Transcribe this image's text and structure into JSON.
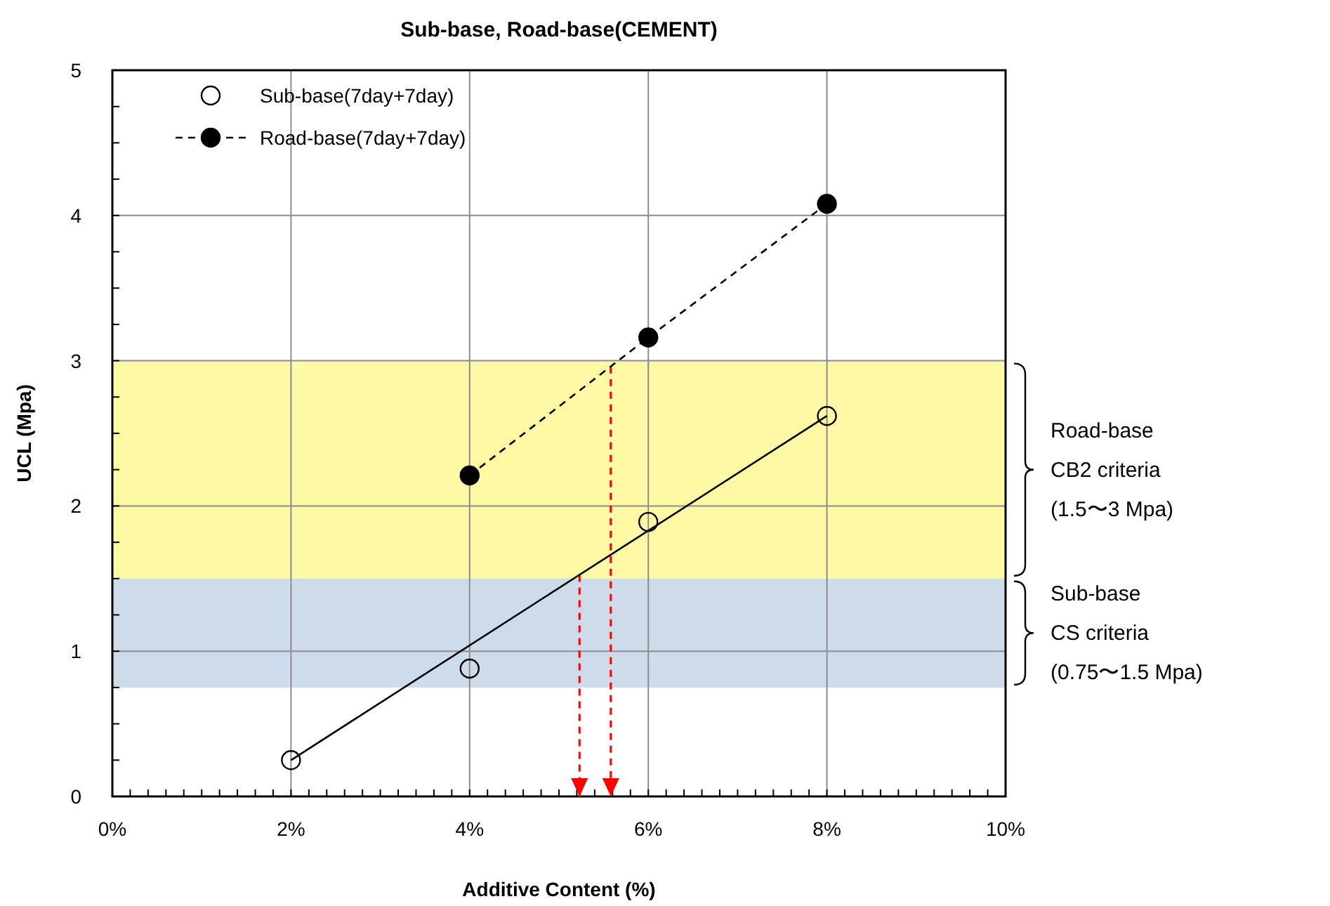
{
  "chart_data": {
    "type": "scatter",
    "title": "Sub-base, Road-base(CEMENT)",
    "xlabel": "Additive Content (%)",
    "ylabel": "UCL (Mpa)",
    "xlim": [
      0,
      0.1
    ],
    "xticks": [
      {
        "value": 0,
        "label": "0%"
      },
      {
        "value": 0.002,
        "label": null
      },
      {
        "value": 0.004,
        "label": null
      },
      {
        "value": 0.006,
        "label": null
      },
      {
        "value": 0.008,
        "label": null
      },
      {
        "value": 0.01,
        "label": null
      },
      {
        "value": 0.012,
        "label": null
      },
      {
        "value": 0.014,
        "label": null
      },
      {
        "value": 0.016,
        "label": null
      },
      {
        "value": 0.018,
        "label": null
      },
      {
        "value": 0.02,
        "label": "2%"
      },
      {
        "value": 0.022,
        "label": null
      },
      {
        "value": 0.024,
        "label": null
      },
      {
        "value": 0.026,
        "label": null
      },
      {
        "value": 0.028,
        "label": null
      },
      {
        "value": 0.03,
        "label": null
      },
      {
        "value": 0.032,
        "label": null
      },
      {
        "value": 0.034,
        "label": null
      },
      {
        "value": 0.036,
        "label": null
      },
      {
        "value": 0.038,
        "label": null
      },
      {
        "value": 0.04,
        "label": "4%"
      },
      {
        "value": 0.042,
        "label": null
      },
      {
        "value": 0.044,
        "label": null
      },
      {
        "value": 0.046,
        "label": null
      },
      {
        "value": 0.048,
        "label": null
      },
      {
        "value": 0.05,
        "label": null
      },
      {
        "value": 0.052,
        "label": null
      },
      {
        "value": 0.054,
        "label": null
      },
      {
        "value": 0.056,
        "label": null
      },
      {
        "value": 0.058,
        "label": null
      },
      {
        "value": 0.06,
        "label": "6%"
      },
      {
        "value": 0.062,
        "label": null
      },
      {
        "value": 0.064,
        "label": null
      },
      {
        "value": 0.066,
        "label": null
      },
      {
        "value": 0.068,
        "label": null
      },
      {
        "value": 0.07,
        "label": null
      },
      {
        "value": 0.072,
        "label": null
      },
      {
        "value": 0.074,
        "label": null
      },
      {
        "value": 0.076,
        "label": null
      },
      {
        "value": 0.078,
        "label": null
      },
      {
        "value": 0.08,
        "label": "8%"
      },
      {
        "value": 0.082,
        "label": null
      },
      {
        "value": 0.084,
        "label": null
      },
      {
        "value": 0.086,
        "label": null
      },
      {
        "value": 0.088,
        "label": null
      },
      {
        "value": 0.09,
        "label": null
      },
      {
        "value": 0.092,
        "label": null
      },
      {
        "value": 0.094,
        "label": null
      },
      {
        "value": 0.096,
        "label": null
      },
      {
        "value": 0.098,
        "label": null
      },
      {
        "value": 0.1,
        "label": "10%"
      }
    ],
    "ylim": [
      0,
      5
    ],
    "yticks": [
      0,
      {
        "value": 0.25,
        "label": null
      },
      {
        "value": 0.5,
        "label": null
      },
      {
        "value": 0.75,
        "label": null
      },
      1,
      {
        "value": 1.25,
        "label": null
      },
      {
        "value": 1.5,
        "label": null
      },
      {
        "value": 1.75,
        "label": null
      },
      2,
      {
        "value": 2.25,
        "label": null
      },
      {
        "value": 2.5,
        "label": null
      },
      {
        "value": 2.75,
        "label": null
      },
      3,
      {
        "value": 3.25,
        "label": null
      },
      {
        "value": 3.5,
        "label": null
      },
      {
        "value": 3.75,
        "label": null
      },
      4,
      {
        "value": 4.25,
        "label": null
      },
      {
        "value": 4.5,
        "label": null
      },
      {
        "value": 4.75,
        "label": null
      },
      5
    ],
    "grid": true,
    "legend": "top left",
    "series": [
      {
        "name": "Sub-base(7day+7day)",
        "color": "#000000",
        "marker": "circle",
        "x": [
          0.02,
          0.04,
          0.06,
          0.08
        ],
        "values": [
          0.25,
          0.88,
          1.89,
          2.62
        ]
      },
      {
        "type": "line",
        "color": "#000000",
        "marker": "none",
        "line_style": "solid",
        "x": [
          0.02,
          0.08
        ],
        "values": [
          0.25,
          2.62
        ]
      },
      {
        "name": "Road-base(7day+7day)",
        "type": "line",
        "color": "#000000",
        "marker": "circle",
        "line_style": "dashed",
        "x": [
          0.04,
          0.06,
          0.08
        ],
        "values": [
          2.21,
          3.16,
          4.08
        ]
      }
    ],
    "bands": [
      {
        "axis": "y",
        "from": 1.5,
        "to": 3,
        "color": "#fdf9a5",
        "label": "Road-base\nCB2 criteria\n(1.5〜3 Mpa)"
      },
      {
        "axis": "y",
        "from": 0.75,
        "to": 1.5,
        "color": "#cddbea",
        "label": "Sub-base\nCS criteria\n(0.75〜1.5 Mpa)"
      }
    ],
    "ref_lines": [
      {
        "axis": "x",
        "value": 0.0523,
        "color": "#ff0000",
        "line_style": "dashed"
      },
      {
        "axis": "x",
        "value": 0.0558,
        "color": "#ff0000",
        "line_style": "dashed"
      }
    ]
  }
}
